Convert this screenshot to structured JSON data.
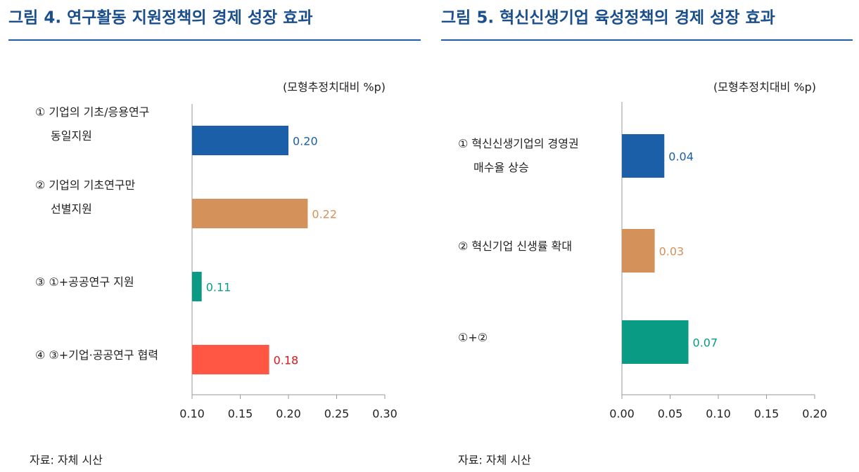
{
  "chart_data": [
    {
      "type": "hbar",
      "title": "그림 4. 연구활동 지원정책의 경제 성장 효과",
      "unit_label": "(모형추정치대비 %p)",
      "categories": [
        "① 기업의 기초/응용연구\n동일지원",
        "② 기업의 기초연구만\n선별지원",
        "③ ①+공공연구 지원",
        "④ ③+기업·공공연구 협력"
      ],
      "values": [
        0.2,
        0.22,
        0.11,
        0.18
      ],
      "value_labels": [
        "0.20",
        "0.22",
        "0.11",
        "0.18"
      ],
      "colors": [
        "#1a5fa8",
        "#d4915a",
        "#0a9b85",
        "#ff5744"
      ],
      "label_colors": [
        "#1a5fa8",
        "#d4915a",
        "#0a9b85",
        "#e0161b"
      ],
      "xlim": [
        0.1,
        0.3
      ],
      "xticks": [
        {
          "value": 0.1,
          "label": "0.10"
        },
        0.15,
        {
          "value": 0.2,
          "label": "0.20"
        },
        0.25,
        {
          "value": 0.3,
          "label": "0.30"
        }
      ],
      "source": "자료: 자체 시산"
    },
    {
      "type": "hbar",
      "title": "그림 5. 혁신신생기업 육성정책의 경제 성장 효과",
      "unit_label": "(모형추정치대비 %p)",
      "categories": [
        "① 혁신신생기업의 경영권\n매수율 상승",
        "② 혁신기업 신생률 확대",
        "①+②"
      ],
      "values": [
        0.044,
        0.034,
        0.069
      ],
      "value_labels": [
        "0.04",
        "0.03",
        "0.07"
      ],
      "colors": [
        "#1a5fa8",
        "#d4915a",
        "#0a9b85"
      ],
      "label_colors": [
        "#1a5fa8",
        "#d4915a",
        "#0a9b85"
      ],
      "xlim": [
        0,
        0.2
      ],
      "xticks": [
        {
          "value": 0,
          "label": "0.00"
        },
        0.05,
        {
          "value": 0.1,
          "label": "0.10"
        },
        0.15,
        {
          "value": 0.2,
          "label": "0.20"
        }
      ],
      "source": "자료: 자체 시산"
    }
  ]
}
